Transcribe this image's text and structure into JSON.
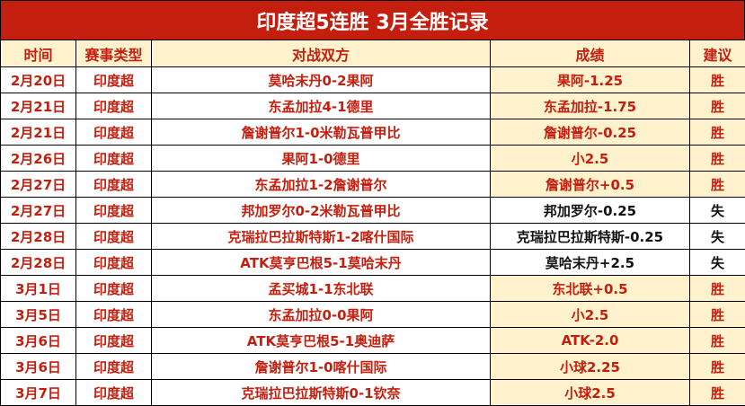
{
  "title": "印度超5连胜 3月全胜记录",
  "colors": {
    "accent": "#c41e0e",
    "header_bg": "#fff2cc",
    "loss_text": "#111111"
  },
  "headers": [
    "时间",
    "赛事类型",
    "对战双方",
    "成绩",
    "建议"
  ],
  "rows": [
    {
      "date": "2月20日",
      "league": "印度超",
      "match": "莫哈末丹0-2果阿",
      "result": "果阿-1.25",
      "advice": "胜"
    },
    {
      "date": "2月21日",
      "league": "印度超",
      "match": "东孟加拉4-1德里",
      "result": "东孟加拉-1.75",
      "advice": "胜"
    },
    {
      "date": "2月21日",
      "league": "印度超",
      "match": "詹谢普尔1-0米勒瓦普甲比",
      "result": "詹谢普尔-0.25",
      "advice": "胜"
    },
    {
      "date": "2月26日",
      "league": "印度超",
      "match": "果阿1-0德里",
      "result": "小2.5",
      "advice": "胜"
    },
    {
      "date": "2月27日",
      "league": "印度超",
      "match": "东孟加拉1-2詹谢普尔",
      "result": "詹谢普尔+0.5",
      "advice": "胜"
    },
    {
      "date": "2月27日",
      "league": "印度超",
      "match": "邦加罗尔0-2米勒瓦普甲比",
      "result": "邦加罗尔-0.25",
      "advice": "失"
    },
    {
      "date": "2月28日",
      "league": "印度超",
      "match": "克瑞拉巴拉斯特斯1-2喀什国际",
      "result": "克瑞拉巴拉斯特斯-0.25",
      "advice": "失"
    },
    {
      "date": "2月28日",
      "league": "印度超",
      "match": "ATK莫亨巴根5-1莫哈末丹",
      "result": "莫哈末丹+2.5",
      "advice": "失"
    },
    {
      "date": "3月1日",
      "league": "印度超",
      "match": "孟买城1-1东北联",
      "result": "东北联+0.5",
      "advice": "胜"
    },
    {
      "date": "3月5日",
      "league": "印度超",
      "match": "东孟加拉0-0果阿",
      "result": "小2.5",
      "advice": "胜"
    },
    {
      "date": "3月6日",
      "league": "印度超",
      "match": "ATK莫亨巴根5-1奥迪萨",
      "result": "ATK-2.0",
      "advice": "胜"
    },
    {
      "date": "3月6日",
      "league": "印度超",
      "match": "詹谢普尔1-0喀什国际",
      "result": "小球2.25",
      "advice": "胜"
    },
    {
      "date": "3月7日",
      "league": "印度超",
      "match": "克瑞拉巴拉斯特斯0-1钦奈",
      "result": "小球2.5",
      "advice": "胜"
    }
  ]
}
